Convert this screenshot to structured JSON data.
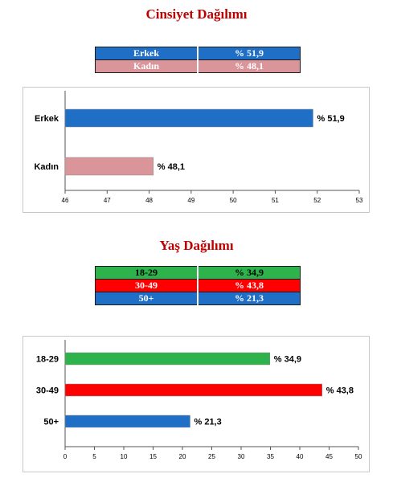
{
  "sections": [
    {
      "title": "Cinsiyet Dağılımı",
      "table": [
        {
          "label": "Erkek",
          "value": "% 51,9",
          "color": "#1f6fc6",
          "text_color": "#ffffff"
        },
        {
          "label": "Kadın",
          "value": "% 48,1",
          "color": "#d9959a",
          "text_color": "#ffffff"
        }
      ]
    },
    {
      "title": "Yaş Dağılımı",
      "table": [
        {
          "label": "18-29",
          "value": "% 34,9",
          "color": "#2eb24b",
          "text_color": "#000000"
        },
        {
          "label": "30-49",
          "value": "% 43,8",
          "color": "#ff0000",
          "text_color": "#ffffff"
        },
        {
          "label": "50+",
          "value": "% 21,3",
          "color": "#1f6fc6",
          "text_color": "#ffffff"
        }
      ]
    }
  ],
  "chart_data": [
    {
      "type": "bar",
      "orientation": "horizontal",
      "categories": [
        "Erkek",
        "Kadın"
      ],
      "values": [
        51.9,
        48.1
      ],
      "value_labels": [
        "% 51,9",
        "% 48,1"
      ],
      "colors": [
        "#1f6fc6",
        "#d9959a"
      ],
      "xlim": [
        46,
        53
      ],
      "xticks": [
        46,
        47,
        48,
        49,
        50,
        51,
        52,
        53
      ],
      "grid": false,
      "title": "",
      "xlabel": "",
      "ylabel": ""
    },
    {
      "type": "bar",
      "orientation": "horizontal",
      "categories": [
        "18-29",
        "30-49",
        "50+"
      ],
      "values": [
        34.9,
        43.8,
        21.3
      ],
      "value_labels": [
        "% 34,9",
        "% 43,8",
        "% 21,3"
      ],
      "colors": [
        "#2eb24b",
        "#ff0000",
        "#1f6fc6"
      ],
      "xlim": [
        0,
        50
      ],
      "xticks": [
        0,
        5,
        10,
        15,
        20,
        25,
        30,
        35,
        40,
        45,
        50
      ],
      "grid": false,
      "title": "",
      "xlabel": "",
      "ylabel": ""
    }
  ]
}
